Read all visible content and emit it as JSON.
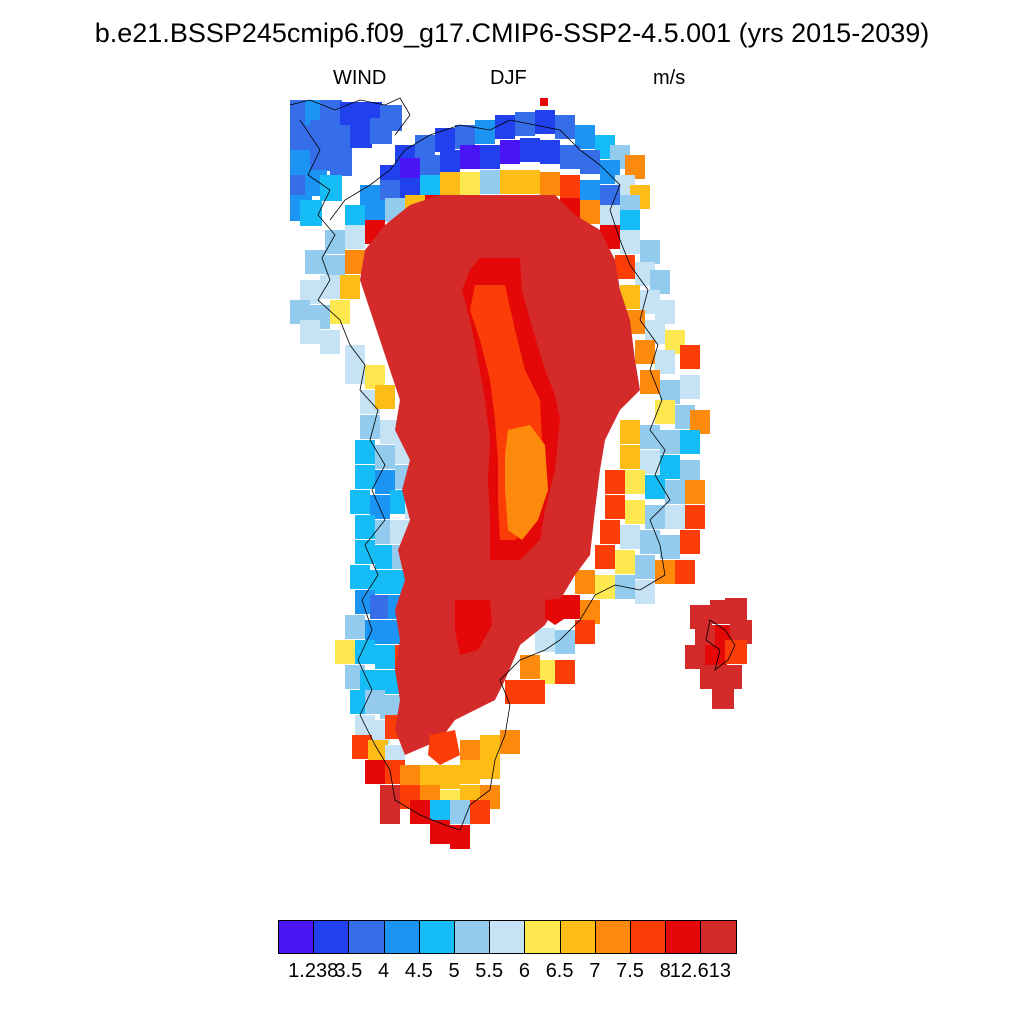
{
  "header": {
    "title": "b.e21.BSSP245cmip6.f09_g17.CMIP6-SSP2-4.5.001 (yrs 2015-2039)",
    "left": "WIND",
    "center": "DJF",
    "right": "m/s"
  },
  "colorbar": {
    "colors": [
      "#4b14f5",
      "#2140ee",
      "#356ee8",
      "#1b94f4",
      "#16bcf5",
      "#92cbee",
      "#c6e3f5",
      "#fde94f",
      "#fdbc16",
      "#fd8a0c",
      "#fd3d08",
      "#e50808",
      "#d42a2a"
    ],
    "labels": [
      "1.238",
      "3.5",
      "4",
      "4.5",
      "5",
      "5.5",
      "6",
      "6.5",
      "7",
      "7.5",
      "8",
      "12.613"
    ]
  },
  "map": {
    "variable": "WIND",
    "season": "DJF",
    "units": "m/s",
    "region": "Greenland"
  }
}
